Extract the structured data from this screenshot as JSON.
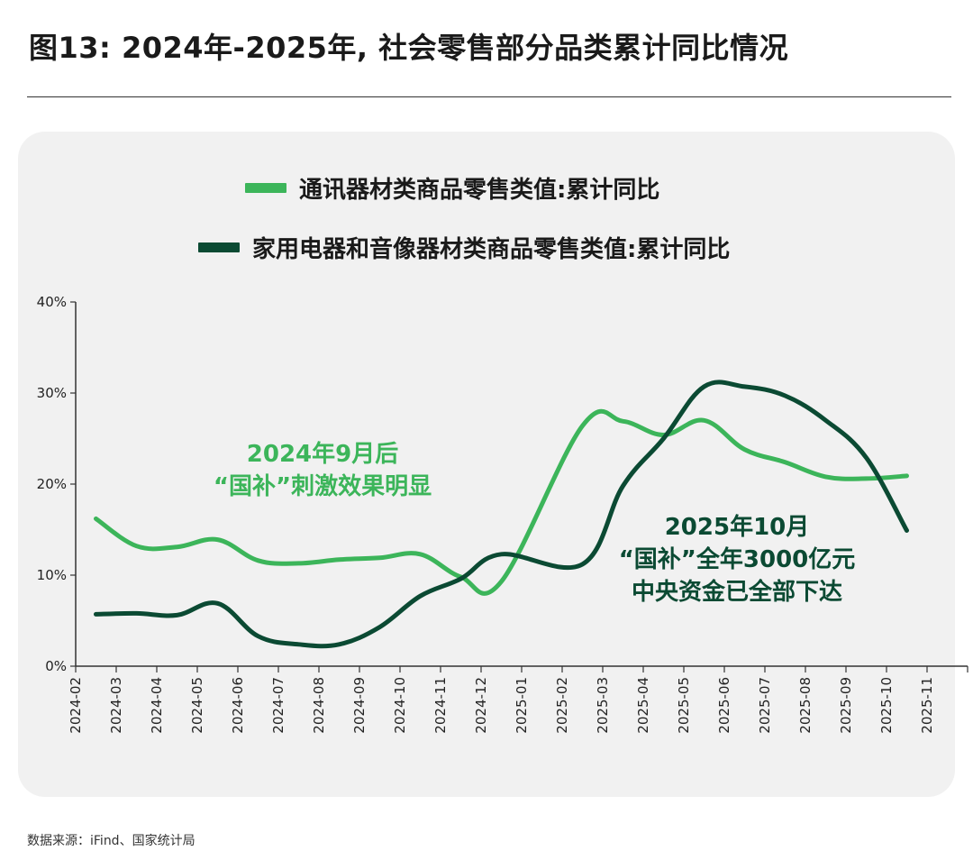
{
  "title": "图13: 2024年-2025年, 社会零售部分品类累计同比情况",
  "source": "数据来源：iFind、国家统计局",
  "colors": {
    "series1": "#3cb55a",
    "series2": "#0b4a33",
    "axis": "#333333"
  },
  "chart_data": {
    "type": "line",
    "y_unit": "%",
    "ylim": [
      0,
      40
    ],
    "y_ticks": [
      0,
      10,
      20,
      30,
      40
    ],
    "y_tick_labels": [
      "0%",
      "10%",
      "20%",
      "30%",
      "40%"
    ],
    "x_tick_labels": [
      "2024-02",
      "2024-03",
      "2024-04",
      "2024-05",
      "2024-06",
      "2024-07",
      "2024-08",
      "2024-09",
      "2024-10",
      "2024-11",
      "2024-12",
      "2025-01",
      "2025-02",
      "2025-03",
      "2025-04",
      "2025-05",
      "2025-06",
      "2025-07",
      "2025-08",
      "2025-09",
      "2025-10",
      "2025-11"
    ],
    "legend_position": "top",
    "grid": false,
    "series": [
      {
        "name": "通讯器材类商品零售类值:累计同比",
        "color": "#3cb55a",
        "x": [
          "2024-02",
          "2024-03",
          "2024-04",
          "2024-05",
          "2024-06",
          "2024-07",
          "2024-08",
          "2024-09",
          "2024-10",
          "2024-11",
          "2024-12",
          "2025-02",
          "2025-03",
          "2025-04",
          "2025-05",
          "2025-06",
          "2025-07",
          "2025-08",
          "2025-09",
          "2025-10"
        ],
        "values": [
          16.2,
          13.2,
          13.1,
          13.9,
          11.6,
          11.3,
          11.7,
          11.9,
          12.3,
          9.8,
          9.3,
          26.4,
          26.9,
          25.4,
          27.0,
          23.8,
          22.4,
          20.8,
          20.6,
          20.9
        ]
      },
      {
        "name": "家用电器和音像器材类商品零售类值:累计同比",
        "color": "#0b4a33",
        "x": [
          "2024-02",
          "2024-03",
          "2024-04",
          "2024-05",
          "2024-06",
          "2024-07",
          "2024-08",
          "2024-09",
          "2024-10",
          "2024-11",
          "2024-12",
          "2025-02",
          "2025-03",
          "2025-04",
          "2025-05",
          "2025-06",
          "2025-07",
          "2025-08",
          "2025-09",
          "2025-10"
        ],
        "values": [
          5.7,
          5.8,
          5.6,
          6.9,
          3.3,
          2.4,
          2.4,
          4.3,
          7.7,
          9.6,
          12.3,
          11.2,
          19.8,
          25.0,
          30.7,
          30.7,
          29.7,
          27.0,
          22.9,
          14.9
        ]
      }
    ],
    "annotations": [
      {
        "lines": [
          "2024年9月后",
          "“国补”刺激效果明显"
        ],
        "color": "#3cb55a"
      },
      {
        "lines": [
          "2025年10月",
          "“国补”全年3000亿元",
          "中央资金已全部下达"
        ],
        "color": "#0b4a33"
      }
    ]
  }
}
